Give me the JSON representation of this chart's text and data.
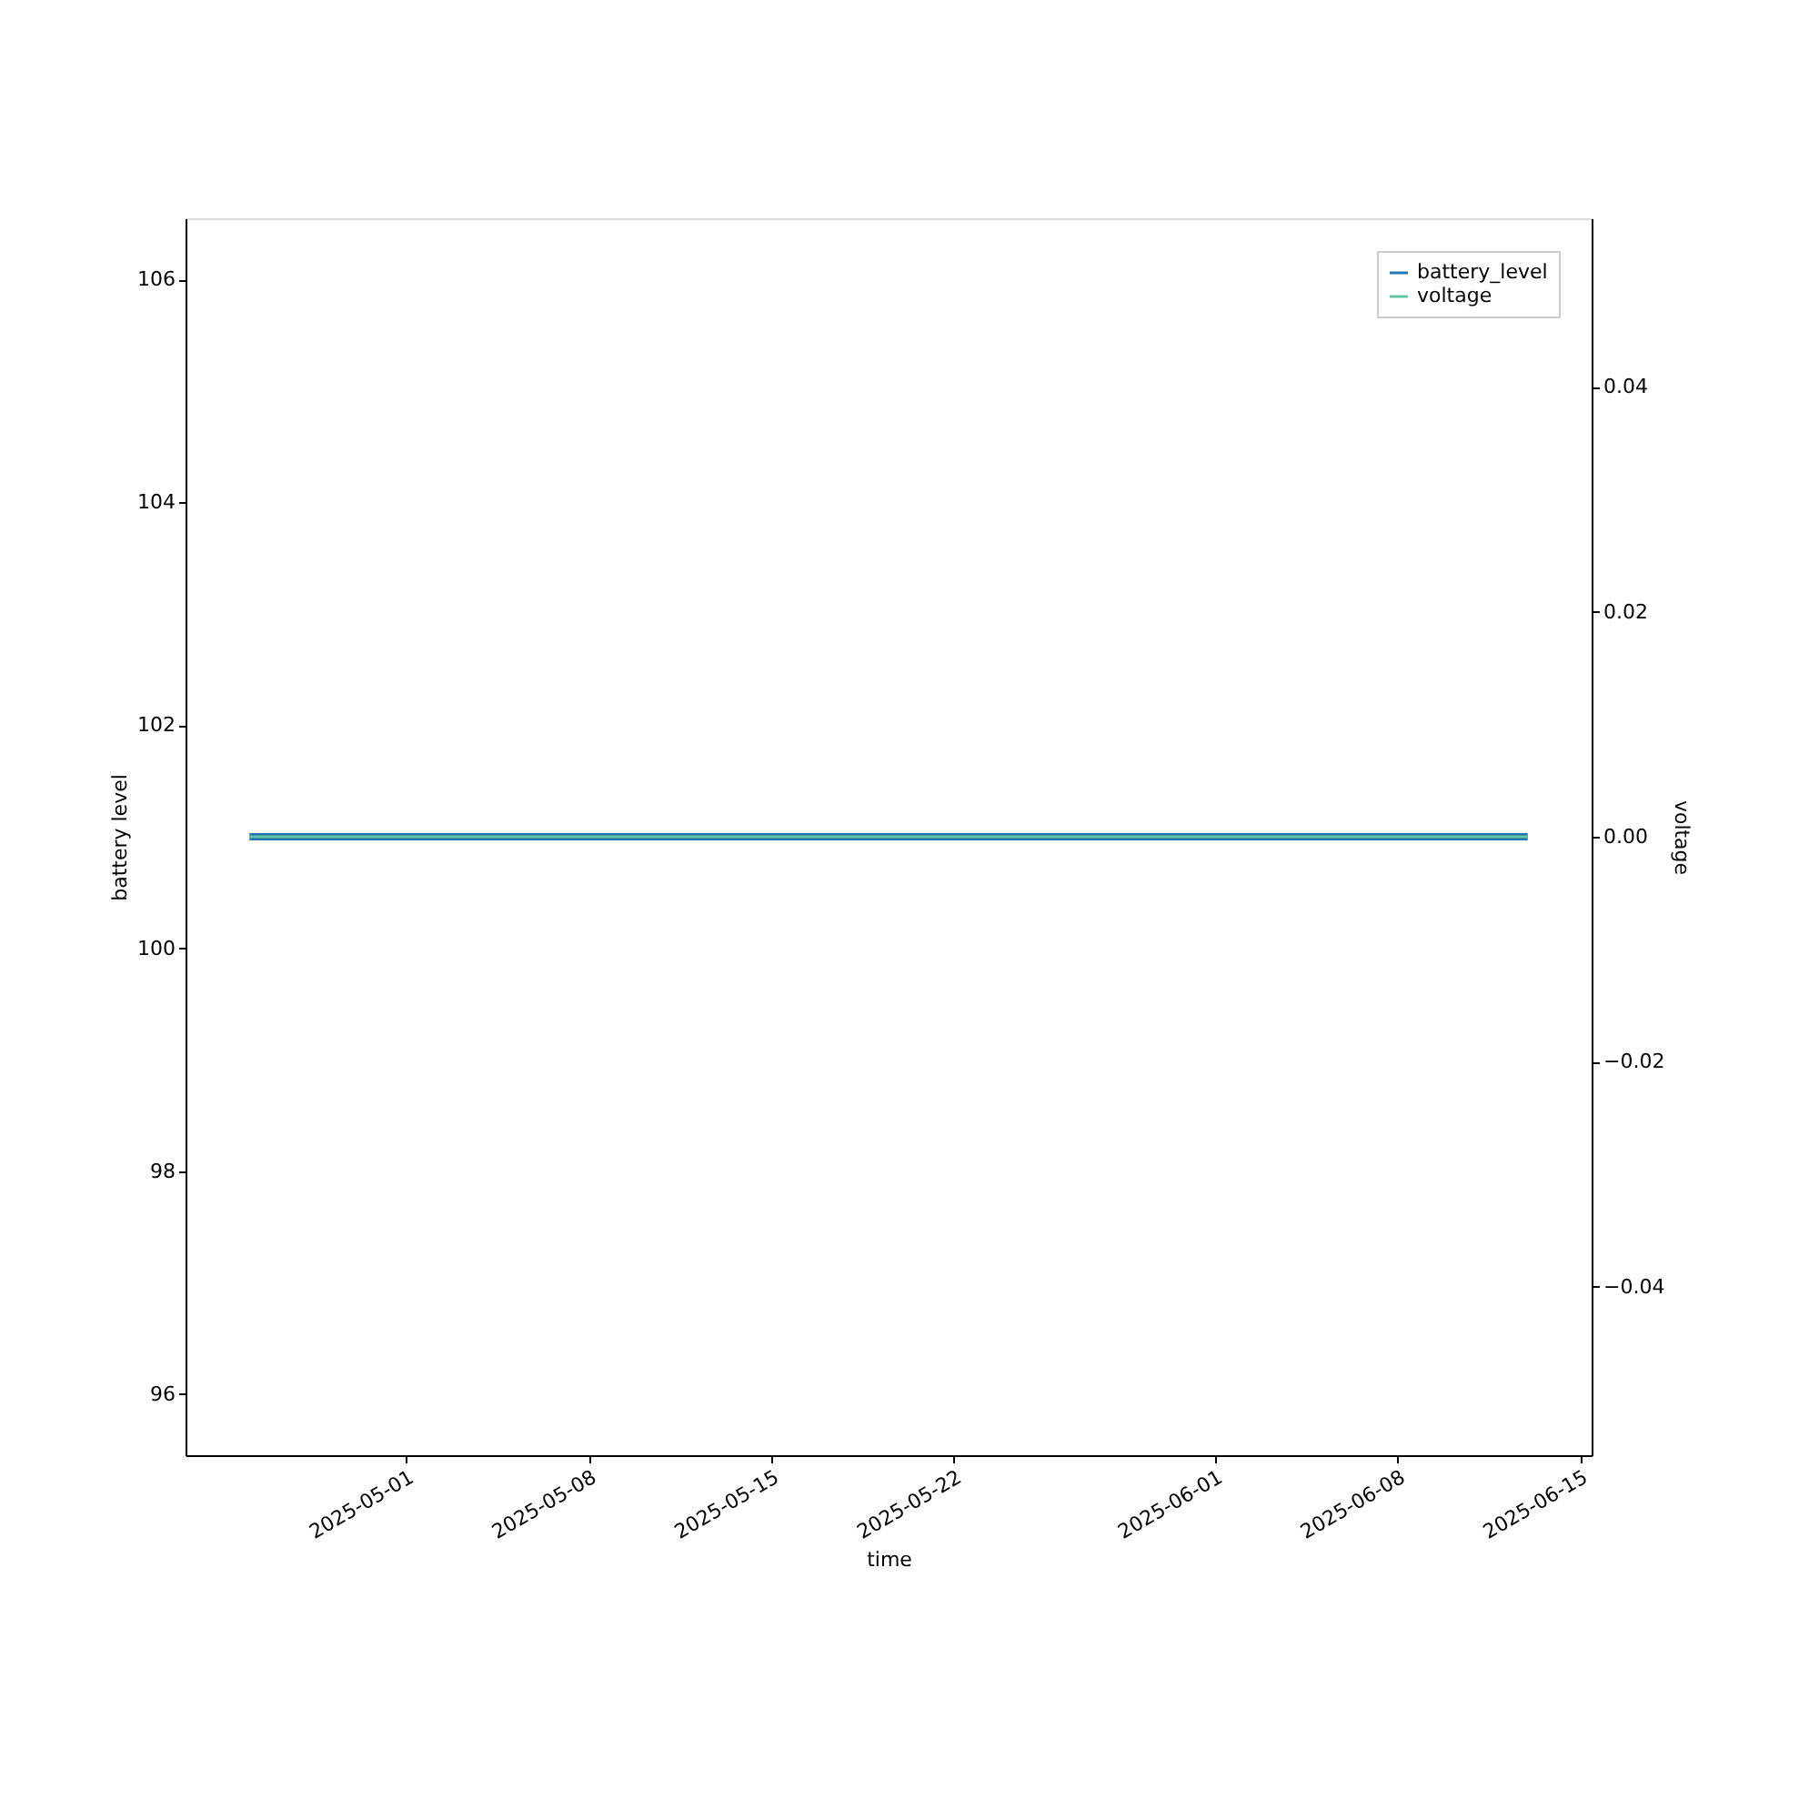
{
  "chart_data": {
    "type": "line",
    "xlabel": "time",
    "ylabel": "battery level",
    "y2label": "voltage",
    "x": [
      "2025-04-25",
      "2025-06-13"
    ],
    "series": [
      {
        "name": "battery_level",
        "color": "#1f77b4",
        "values": [
          101,
          101
        ]
      },
      {
        "name": "voltage",
        "color": "#66c2a5",
        "values": [
          0,
          0
        ],
        "axis": "y2"
      }
    ],
    "xlim": [
      "2025-04-22T13:12",
      "2025-06-15T10:48"
    ],
    "xticks": [
      "2025-05-01",
      "2025-05-08",
      "2025-05-15",
      "2025-05-22",
      "2025-06-01",
      "2025-06-08",
      "2025-06-15"
    ],
    "ylim": [
      95.45,
      106.55
    ],
    "yticks": [
      96,
      98,
      100,
      102,
      104,
      106
    ],
    "y2lim": [
      -0.055,
      0.055
    ],
    "y2ticks": [
      {
        "value": -0.04,
        "label": "−0.04"
      },
      {
        "value": -0.02,
        "label": "−0.02"
      },
      {
        "value": 0,
        "label": "0.00"
      },
      {
        "value": 0.02,
        "label": "0.02"
      },
      {
        "value": 0.04,
        "label": "0.04"
      }
    ],
    "grid": false,
    "legend": "top right",
    "marker": "none",
    "line_style": "solid"
  }
}
